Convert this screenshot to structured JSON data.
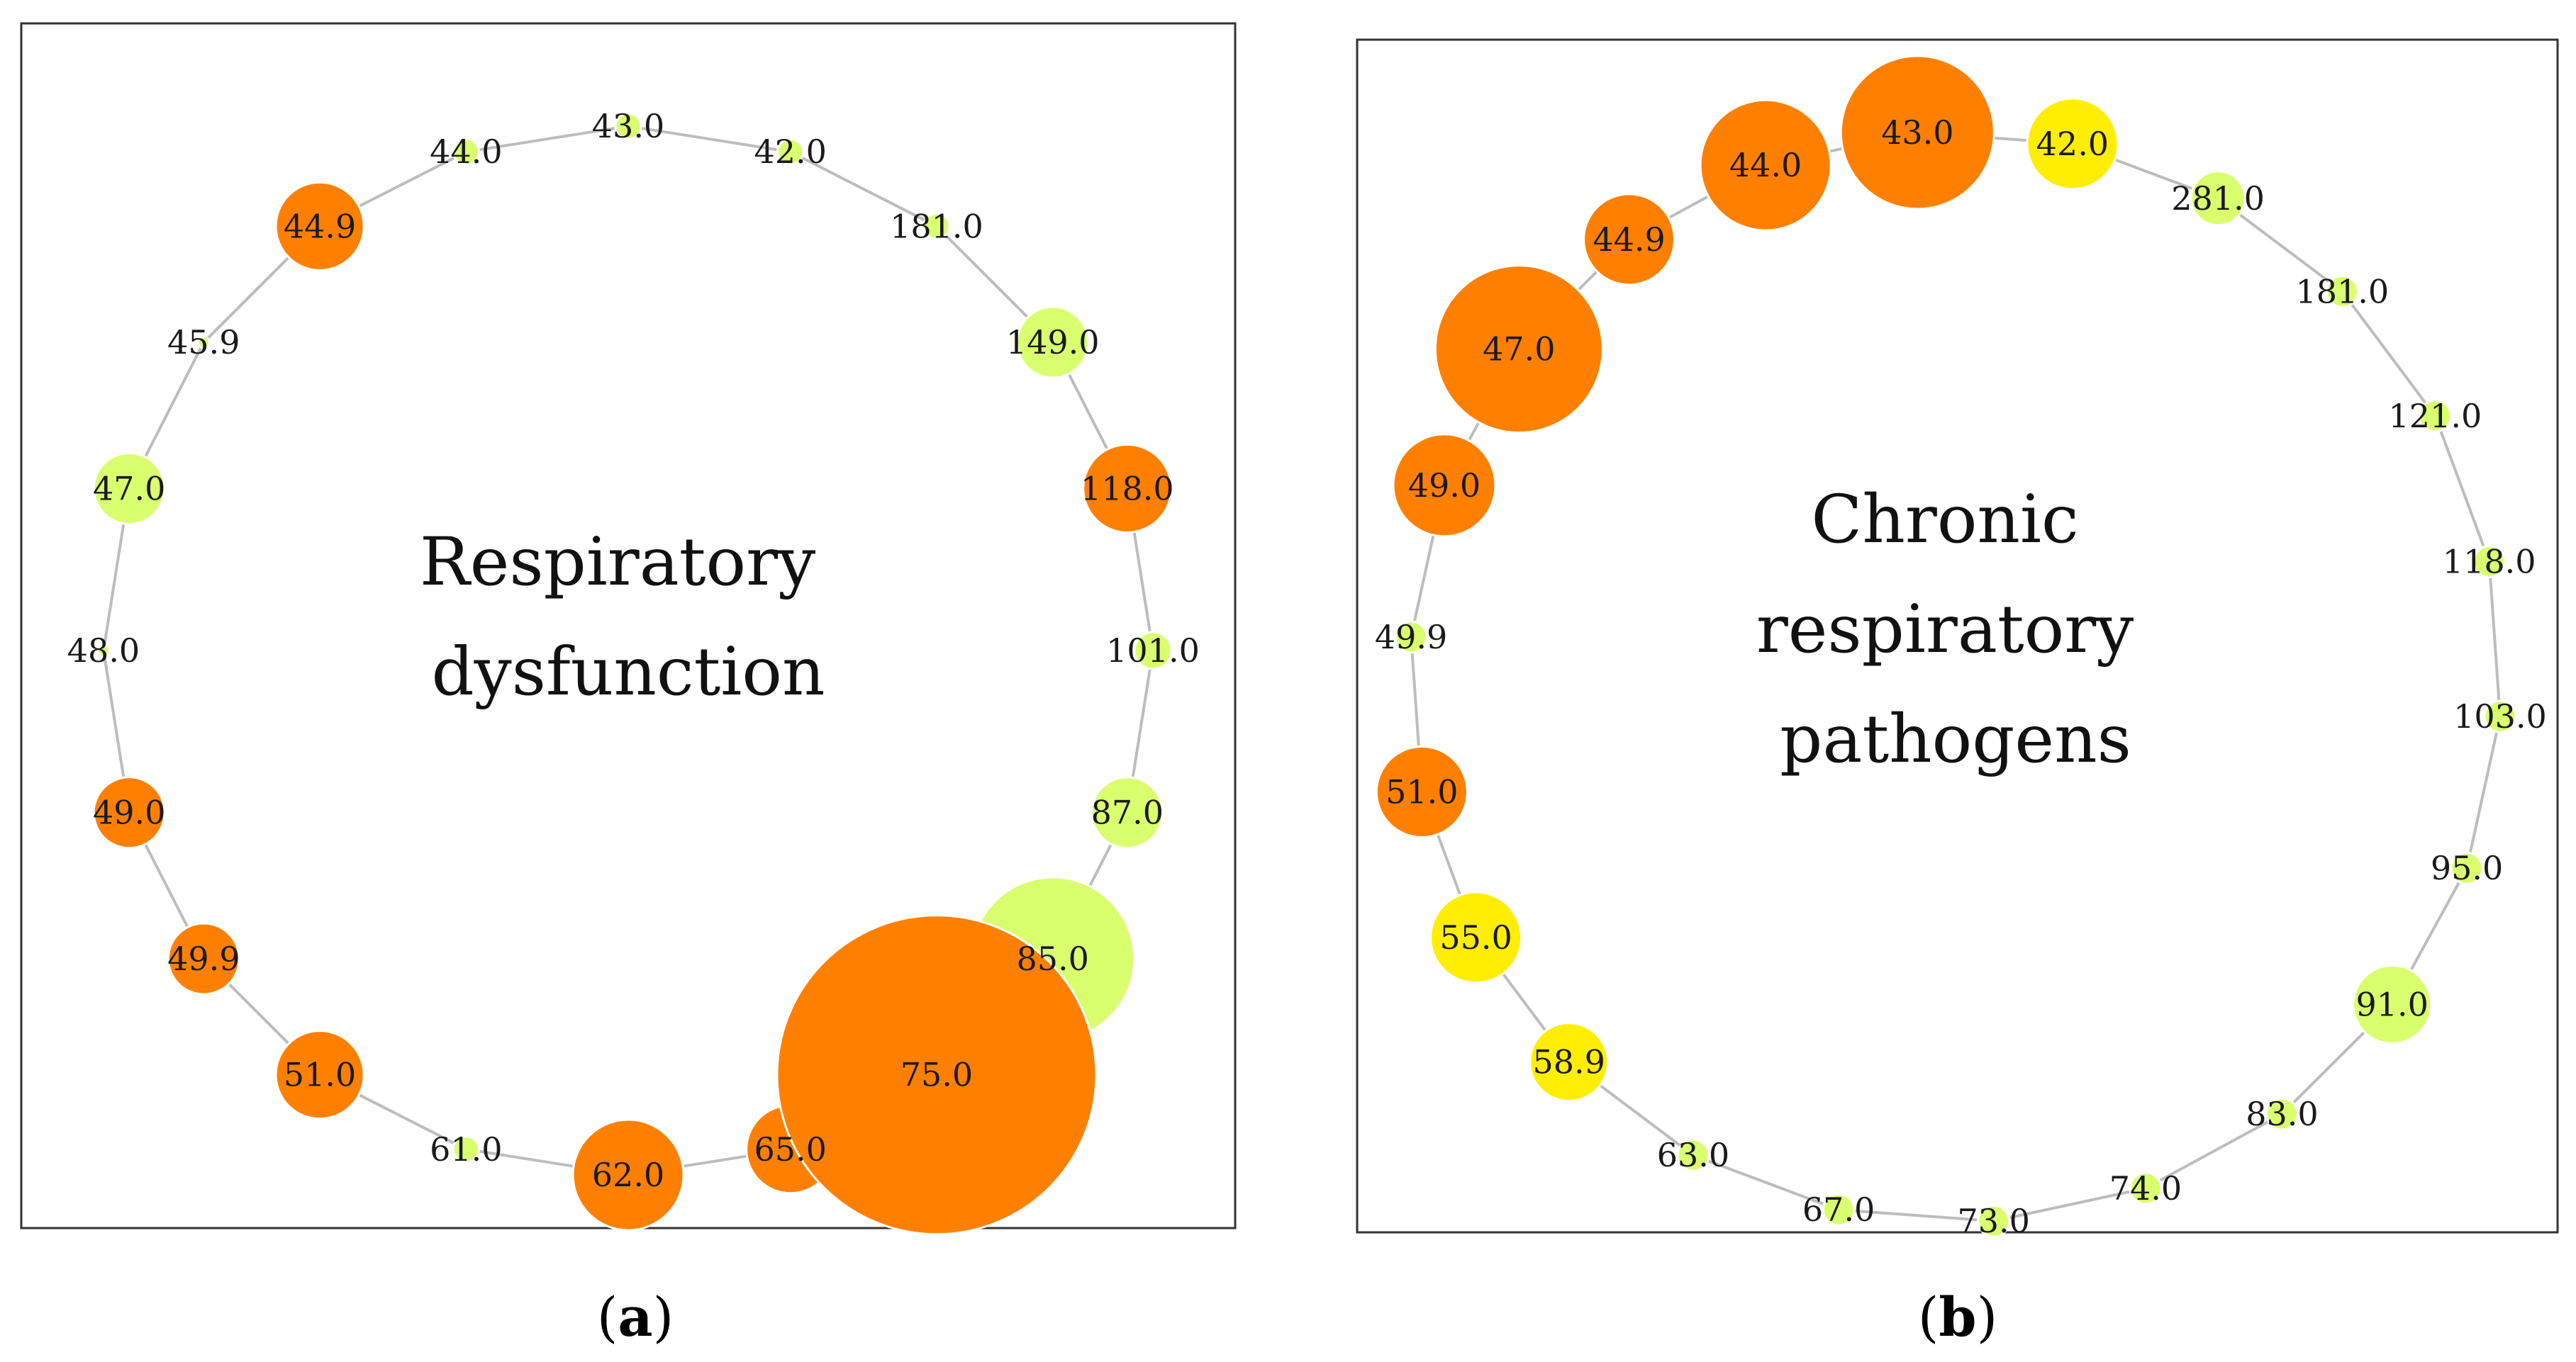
{
  "colors": {
    "orange": "#ff8000",
    "lime": "#d9ff6e",
    "yellow": "#ffee00",
    "edge": "#bdbdbd",
    "node_stroke": "#ffffff"
  },
  "panels": [
    {
      "id": "a",
      "title_lines": [
        "Respiratory",
        "dysfunction"
      ],
      "caption_open": "(",
      "caption_letter": "a",
      "caption_close": ")",
      "nodes": [
        {
          "label": "43.0",
          "color": "lime",
          "size": 1
        },
        {
          "label": "42.0",
          "color": "lime",
          "size": 1
        },
        {
          "label": "181.0",
          "color": "lime",
          "size": 1
        },
        {
          "label": "149.0",
          "color": "lime",
          "size": 3
        },
        {
          "label": "118.0",
          "color": "orange",
          "size": 4
        },
        {
          "label": "101.0",
          "color": "lime",
          "size": 2
        },
        {
          "label": "87.0",
          "color": "lime",
          "size": 3
        },
        {
          "label": "85.0",
          "color": "lime",
          "size": 7
        },
        {
          "label": "75.0",
          "color": "orange",
          "size": 10
        },
        {
          "label": "65.0",
          "color": "orange",
          "size": 4
        },
        {
          "label": "62.0",
          "color": "orange",
          "size": 5
        },
        {
          "label": "61.0",
          "color": "lime",
          "size": 1
        },
        {
          "label": "51.0",
          "color": "orange",
          "size": 4
        },
        {
          "label": "49.9",
          "color": "orange",
          "size": 3
        },
        {
          "label": "49.0",
          "color": "orange",
          "size": 3
        },
        {
          "label": "48.0",
          "color": "lime",
          "size": 0
        },
        {
          "label": "47.0",
          "color": "lime",
          "size": 3
        },
        {
          "label": "45.9",
          "color": "lime",
          "size": 0
        },
        {
          "label": "44.9",
          "color": "orange",
          "size": 4
        },
        {
          "label": "44.0",
          "color": "lime",
          "size": 1
        }
      ]
    },
    {
      "id": "b",
      "title_lines": [
        "Chronic",
        "respiratory",
        "pathogens"
      ],
      "caption_open": "(",
      "caption_letter": "b",
      "caption_close": ")",
      "nodes": [
        {
          "label": "43.0",
          "color": "orange",
          "size": 7
        },
        {
          "label": "42.0",
          "color": "yellow",
          "size": 4
        },
        {
          "label": "281.0",
          "color": "lime",
          "size": 2
        },
        {
          "label": "181.0",
          "color": "lime",
          "size": 1
        },
        {
          "label": "121.0",
          "color": "lime",
          "size": 1
        },
        {
          "label": "118.0",
          "color": "lime",
          "size": 1
        },
        {
          "label": "103.0",
          "color": "lime",
          "size": 1
        },
        {
          "label": "95.0",
          "color": "lime",
          "size": 1
        },
        {
          "label": "91.0",
          "color": "lime",
          "size": 3
        },
        {
          "label": "83.0",
          "color": "lime",
          "size": 1
        },
        {
          "label": "74.0",
          "color": "lime",
          "size": 1
        },
        {
          "label": "73.0",
          "color": "lime",
          "size": 1
        },
        {
          "label": "67.0",
          "color": "lime",
          "size": 1
        },
        {
          "label": "63.0",
          "color": "lime",
          "size": 1
        },
        {
          "label": "58.9",
          "color": "yellow",
          "size": 3
        },
        {
          "label": "55.0",
          "color": "yellow",
          "size": 4
        },
        {
          "label": "51.0",
          "color": "orange",
          "size": 4
        },
        {
          "label": "49.9",
          "color": "lime",
          "size": 1
        },
        {
          "label": "49.0",
          "color": "orange",
          "size": 5
        },
        {
          "label": "47.0",
          "color": "orange",
          "size": 8
        },
        {
          "label": "44.9",
          "color": "orange",
          "size": 4
        },
        {
          "label": "44.0",
          "color": "orange",
          "size": 6
        }
      ]
    }
  ]
}
